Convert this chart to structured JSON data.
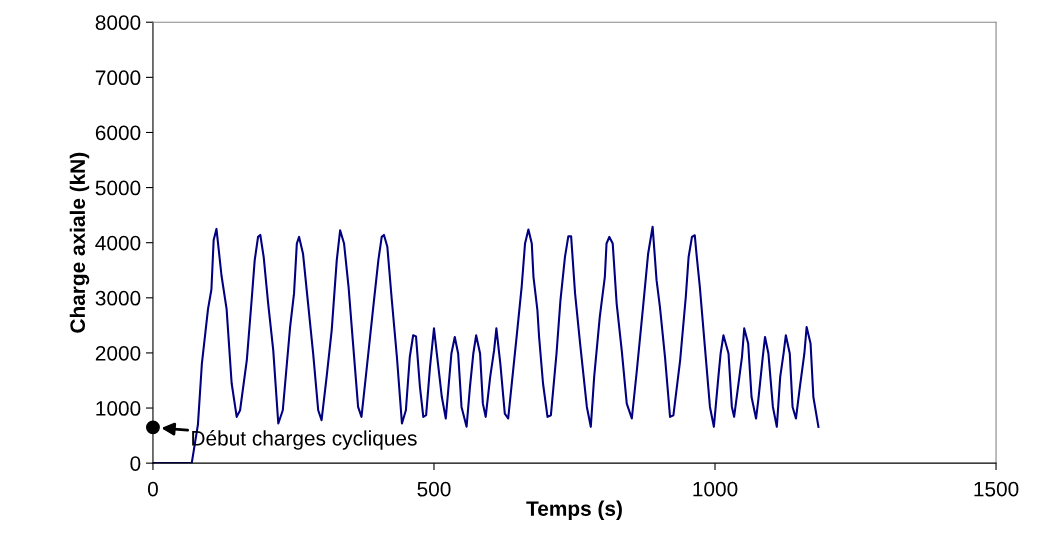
{
  "chart_data": {
    "type": "line",
    "xlabel": "Temps (s)",
    "ylabel": "Charge axiale (kN)",
    "xlim": [
      0,
      1500
    ],
    "xticks": [
      0,
      500,
      1000,
      1500
    ],
    "ylim": [
      0,
      8000
    ],
    "yticks": [
      0,
      1000,
      2000,
      3000,
      4000,
      5000,
      6000,
      7000,
      8000
    ],
    "grid": false,
    "marker": "none",
    "line_style": "solid",
    "annotations": [
      {
        "text": "Début charges cycliques",
        "x": 0,
        "y": 650
      }
    ],
    "series": [
      {
        "color": "#000080",
        "x": [
          0,
          69,
          80,
          87,
          98,
          104,
          108,
          113,
          122,
          131,
          140,
          149,
          155,
          167,
          176,
          181,
          187,
          191,
          197,
          205,
          214,
          223,
          231,
          244,
          251,
          256,
          260,
          267,
          276,
          285,
          294,
          300,
          309,
          318,
          327,
          333,
          340,
          348,
          356,
          365,
          371,
          380,
          392,
          401,
          407,
          411,
          417,
          425,
          434,
          443,
          450,
          457,
          463,
          468,
          475,
          481,
          486,
          493,
          500,
          505,
          514,
          521,
          531,
          537,
          543,
          549,
          558,
          564,
          570,
          575,
          582,
          587,
          592,
          600,
          607,
          611,
          618,
          626,
          632,
          647,
          656,
          662,
          668,
          674,
          677,
          684,
          687,
          694,
          702,
          708,
          718,
          725,
          733,
          739,
          744,
          751,
          760,
          772,
          779,
          785,
          795,
          804,
          807,
          812,
          818,
          825,
          834,
          843,
          852,
          861,
          872,
          881,
          889,
          896,
          902,
          911,
          920,
          926,
          938,
          948,
          953,
          959,
          964,
          967,
          973,
          982,
          991,
          998,
          1006,
          1010,
          1015,
          1024,
          1030,
          1034,
          1048,
          1052,
          1059,
          1065,
          1073,
          1077,
          1085,
          1089,
          1095,
          1103,
          1110,
          1116,
          1122,
          1126,
          1133,
          1138,
          1144,
          1151,
          1159,
          1163,
          1170,
          1175,
          1184
        ],
        "values": [
          0,
          0,
          700,
          1800,
          2800,
          3150,
          4050,
          4250,
          3400,
          2800,
          1450,
          840,
          960,
          1870,
          3015,
          3680,
          4105,
          4140,
          3740,
          2895,
          2050,
          720,
          960,
          2470,
          3080,
          3985,
          4105,
          3800,
          2895,
          1990,
          960,
          780,
          1565,
          2410,
          3680,
          4225,
          3985,
          3200,
          2170,
          1020,
          840,
          1690,
          2835,
          3680,
          4105,
          4140,
          3925,
          2955,
          1930,
          720,
          960,
          1930,
          2320,
          2300,
          1385,
          840,
          870,
          1750,
          2445,
          1990,
          1200,
          810,
          1990,
          2290,
          1990,
          1020,
          660,
          1385,
          1990,
          2320,
          1990,
          1080,
          840,
          1565,
          2050,
          2445,
          1810,
          900,
          810,
          2290,
          3200,
          3985,
          4240,
          3985,
          3380,
          2775,
          2290,
          1445,
          840,
          870,
          1990,
          2955,
          3740,
          4115,
          4115,
          3080,
          2170,
          1020,
          660,
          1565,
          2655,
          3380,
          3985,
          4105,
          3985,
          2895,
          2050,
          1080,
          810,
          1690,
          2835,
          3800,
          4290,
          3320,
          2835,
          1930,
          840,
          870,
          1870,
          3015,
          3740,
          4105,
          4135,
          3800,
          3200,
          2110,
          1020,
          660,
          1565,
          1990,
          2320,
          1990,
          1020,
          840,
          1930,
          2445,
          2170,
          1200,
          810,
          1145,
          1930,
          2290,
          1990,
          1020,
          660,
          1565,
          1990,
          2320,
          1990,
          1020,
          810,
          1385,
          1990,
          2470,
          2170,
          1200,
          660
        ]
      }
    ]
  }
}
